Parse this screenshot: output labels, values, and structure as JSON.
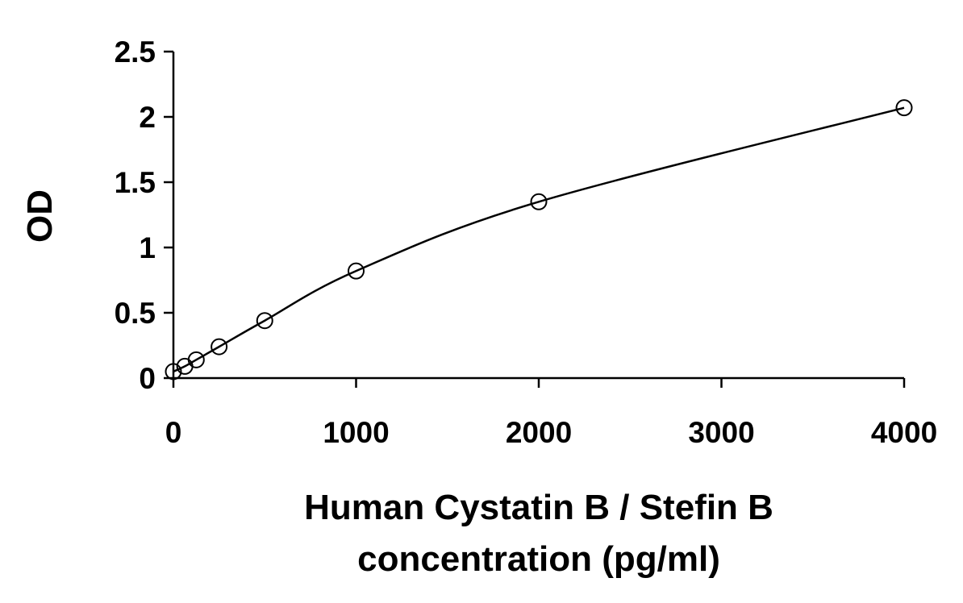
{
  "chart_data": {
    "type": "scatter",
    "title": "",
    "xlabel_lines": [
      "Human Cystatin B / Stefin B",
      "concentration (pg/ml)"
    ],
    "ylabel": "OD",
    "xlim": [
      0,
      4000
    ],
    "ylim": [
      0,
      2.5
    ],
    "x_ticks": [
      0,
      1000,
      2000,
      3000,
      4000
    ],
    "y_ticks": [
      0,
      0.5,
      1,
      1.5,
      2,
      2.5
    ],
    "x_tick_labels": [
      "0",
      "1000",
      "2000",
      "3000",
      "4000"
    ],
    "y_tick_labels": [
      "0",
      "0.5",
      "1",
      "1.5",
      "2",
      "2.5"
    ],
    "grid": false,
    "legend": "none",
    "series": [
      {
        "x": [
          0,
          62.5,
          125,
          250,
          500,
          1000,
          2000,
          4000
        ],
        "y": [
          0.05,
          0.09,
          0.14,
          0.24,
          0.44,
          0.82,
          1.35,
          2.07
        ],
        "marker": "open-circle",
        "trendline": "smooth-curve"
      }
    ],
    "colors": {
      "marker": "#000000",
      "line": "#000000",
      "axis": "#000000"
    }
  }
}
